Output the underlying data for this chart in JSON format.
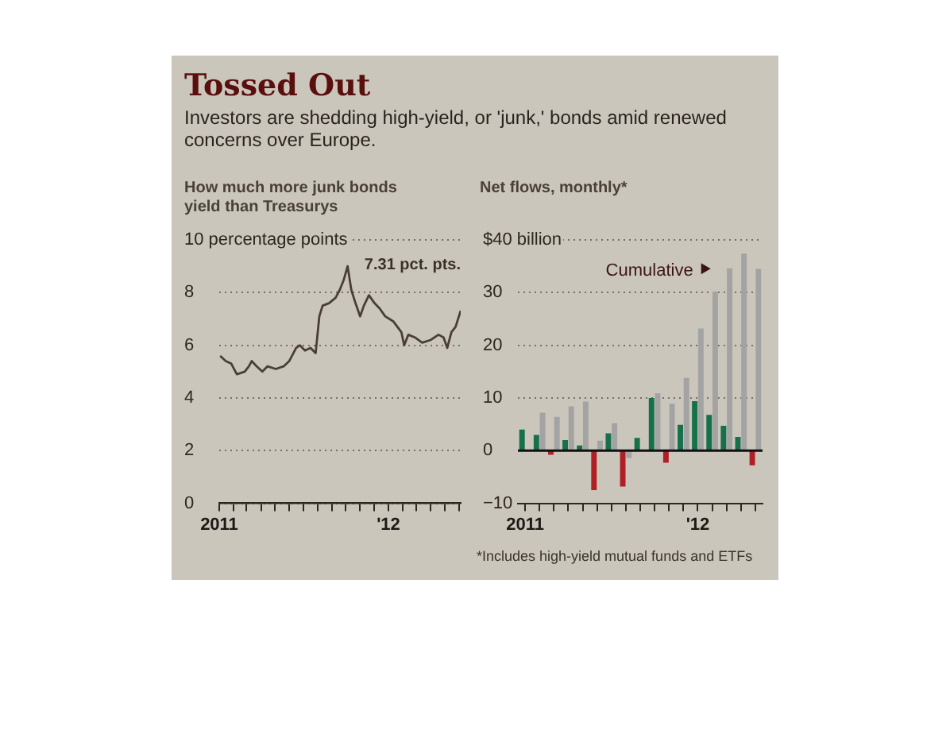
{
  "chart_data": [
    {
      "type": "line",
      "title": "Tossed Out",
      "subtitle": "Investors are shedding high-yield, or 'junk,' bonds amid renewed concerns over Europe.",
      "ylabel": "How much more junk bonds yield than Treasurys",
      "x": [
        "2011-01-03",
        "2011-01-15",
        "2011-01-27",
        "2011-02-08",
        "2011-02-25",
        "2011-03-06",
        "2011-03-12",
        "2011-03-23",
        "2011-04-04",
        "2011-04-15",
        "2011-05-03",
        "2011-05-20",
        "2011-06-01",
        "2011-06-16",
        "2011-06-24",
        "2011-07-05",
        "2011-07-17",
        "2011-07-28",
        "2011-08-05",
        "2011-08-12",
        "2011-08-26",
        "2011-09-09",
        "2011-09-18",
        "2011-09-27",
        "2011-10-05",
        "2011-10-13",
        "2011-10-22",
        "2011-11-01",
        "2011-11-09",
        "2011-11-20",
        "2011-12-02",
        "2011-12-13",
        "2011-12-25",
        "2012-01-12",
        "2012-01-29",
        "2012-02-04",
        "2012-02-13",
        "2012-02-27",
        "2012-03-14",
        "2012-04-01",
        "2012-04-18",
        "2012-04-29",
        "2012-05-07",
        "2012-05-16",
        "2012-05-25",
        "2012-06-05"
      ],
      "series": [
        {
          "color": "#4a3f38",
          "values": [
            5.6,
            5.4,
            5.3,
            4.9,
            5.0,
            5.2,
            5.4,
            5.2,
            5.0,
            5.2,
            5.1,
            5.2,
            5.4,
            5.9,
            6.0,
            5.8,
            5.9,
            5.7,
            7.1,
            7.5,
            7.6,
            7.8,
            8.1,
            8.5,
            9.0,
            8.1,
            7.6,
            7.1,
            7.5,
            7.9,
            7.6,
            7.4,
            7.1,
            6.9,
            6.5,
            6.0,
            6.4,
            6.3,
            6.1,
            6.2,
            6.4,
            6.3,
            5.9,
            6.5,
            6.7,
            7.31
          ]
        }
      ],
      "xlim": [
        "2011-01-01",
        "2012-06-05"
      ],
      "xticks": [
        {
          "value": "2011-01",
          "label": "2011"
        },
        {
          "value": "2011-02",
          "label": null
        },
        {
          "value": "2011-03",
          "label": null
        },
        {
          "value": "2011-04",
          "label": null
        },
        {
          "value": "2011-05",
          "label": null
        },
        {
          "value": "2011-06",
          "label": null
        },
        {
          "value": "2011-07",
          "label": null
        },
        {
          "value": "2011-08",
          "label": null
        },
        {
          "value": "2011-09",
          "label": null
        },
        {
          "value": "2011-10",
          "label": null
        },
        {
          "value": "2011-11",
          "label": null
        },
        {
          "value": "2011-12",
          "label": null
        },
        {
          "value": "2012-01",
          "label": "'12"
        },
        {
          "value": "2012-02",
          "label": null
        },
        {
          "value": "2012-03",
          "label": null
        },
        {
          "value": "2012-04",
          "label": null
        },
        {
          "value": "2012-05",
          "label": null
        },
        {
          "value": "2012-06",
          "label": null
        }
      ],
      "ylim": [
        0,
        10
      ],
      "yticks": [
        0,
        2,
        4,
        6,
        8,
        {
          "value": 10,
          "label": "10 percentage points"
        }
      ],
      "grid": "y",
      "marker": "none",
      "annotations": [
        {
          "text": "7.31 pct. pts.",
          "x": "2012-06-05",
          "y": 7.31
        }
      ]
    },
    {
      "type": "bar",
      "title": "Net flows, monthly*",
      "categories": [
        "2011",
        null,
        null,
        null,
        null,
        null,
        null,
        null,
        null,
        null,
        null,
        null,
        "'12",
        null,
        null,
        null,
        null
      ],
      "series": [
        {
          "name": "Cumulative",
          "color": "#a3a3a3",
          "values": [
            null,
            7.2,
            6.4,
            8.4,
            9.3,
            1.9,
            5.2,
            -1.4,
            null,
            10.9,
            8.9,
            13.8,
            23.2,
            30.2,
            34.6,
            37.4,
            34.5
          ]
        },
        {
          "colors": [
            "#16704a",
            "#16704a",
            "#b01f24",
            "#16704a",
            "#16704a",
            "#b01f24",
            "#16704a",
            "#b01f24",
            "#16704a",
            "#16704a",
            "#b01f24",
            "#16704a",
            "#16704a",
            "#16704a",
            "#16704a",
            "#16704a",
            "#b01f24"
          ],
          "values": [
            4.0,
            3.0,
            -0.8,
            2.0,
            1.0,
            -7.5,
            3.3,
            -6.8,
            2.4,
            10.0,
            -2.3,
            4.9,
            9.4,
            6.8,
            4.7,
            2.6,
            -2.8
          ]
        }
      ],
      "ylim": [
        -10,
        40
      ],
      "yticks": [
        {
          "value": -10,
          "label": "−10"
        },
        0,
        10,
        20,
        30,
        {
          "value": 40,
          "label": "$40 billion"
        }
      ],
      "grid": "y",
      "ref_lines": [
        {
          "axis": "y",
          "value": 0
        }
      ],
      "annotations": [
        "*Includes high-yield mutual funds and ETFs"
      ]
    }
  ]
}
